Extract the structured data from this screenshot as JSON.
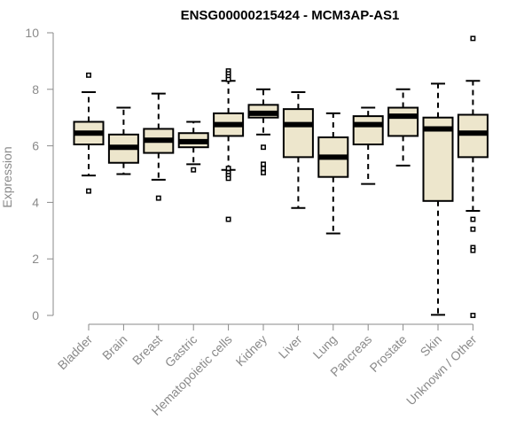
{
  "chart_data": {
    "type": "box",
    "title": "ENSG00000215424 - MCM3AP-AS1",
    "ylabel": "Expression",
    "xlabel": "",
    "ylim": [
      0,
      10
    ],
    "yticks": [
      0,
      2,
      4,
      6,
      8,
      10
    ],
    "box_fill": "#ede6cc",
    "categories": [
      "Bladder",
      "Brain",
      "Breast",
      "Gastric",
      "Hematopoietic cells",
      "Kidney",
      "Liver",
      "Lung",
      "Pancreas",
      "Prostate",
      "Skin",
      "Unknown / Other"
    ],
    "boxes": [
      {
        "category": "Bladder",
        "whisker_low": 4.95,
        "q1": 6.05,
        "median": 6.45,
        "q3": 6.85,
        "whisker_high": 7.9,
        "outliers": [
          8.5,
          4.4
        ]
      },
      {
        "category": "Brain",
        "whisker_low": 5.0,
        "q1": 5.4,
        "median": 5.95,
        "q3": 6.4,
        "whisker_high": 7.35,
        "outliers": []
      },
      {
        "category": "Breast",
        "whisker_low": 4.8,
        "q1": 5.75,
        "median": 6.2,
        "q3": 6.6,
        "whisker_high": 7.85,
        "outliers": [
          4.15
        ]
      },
      {
        "category": "Gastric",
        "whisker_low": 5.35,
        "q1": 5.95,
        "median": 6.15,
        "q3": 6.45,
        "whisker_high": 6.85,
        "outliers": [
          5.15
        ]
      },
      {
        "category": "Hematopoietic cells",
        "whisker_low": 5.15,
        "q1": 6.35,
        "median": 6.75,
        "q3": 7.15,
        "whisker_high": 8.3,
        "outliers": [
          8.65,
          8.55,
          8.45,
          8.35,
          5.2,
          5.05,
          4.95,
          4.85,
          3.4
        ]
      },
      {
        "category": "Kidney",
        "whisker_low": 6.4,
        "q1": 7.0,
        "median": 7.15,
        "q3": 7.45,
        "whisker_high": 8.0,
        "outliers": [
          5.95,
          5.35,
          5.2,
          5.05
        ]
      },
      {
        "category": "Liver",
        "whisker_low": 3.8,
        "q1": 5.6,
        "median": 6.75,
        "q3": 7.3,
        "whisker_high": 7.9,
        "outliers": []
      },
      {
        "category": "Lung",
        "whisker_low": 2.9,
        "q1": 4.9,
        "median": 5.6,
        "q3": 6.3,
        "whisker_high": 7.15,
        "outliers": []
      },
      {
        "category": "Pancreas",
        "whisker_low": 4.65,
        "q1": 6.05,
        "median": 6.75,
        "q3": 7.05,
        "whisker_high": 7.35,
        "outliers": []
      },
      {
        "category": "Prostate",
        "whisker_low": 5.3,
        "q1": 6.35,
        "median": 7.05,
        "q3": 7.35,
        "whisker_high": 8.0,
        "outliers": []
      },
      {
        "category": "Skin",
        "whisker_low": 0.02,
        "q1": 4.05,
        "median": 6.6,
        "q3": 7.0,
        "whisker_high": 8.2,
        "outliers": []
      },
      {
        "category": "Unknown / Other",
        "whisker_low": 3.7,
        "q1": 5.6,
        "median": 6.45,
        "q3": 7.1,
        "whisker_high": 8.3,
        "outliers": [
          9.8,
          3.4,
          3.05,
          2.4,
          2.3,
          0.0
        ]
      }
    ]
  }
}
